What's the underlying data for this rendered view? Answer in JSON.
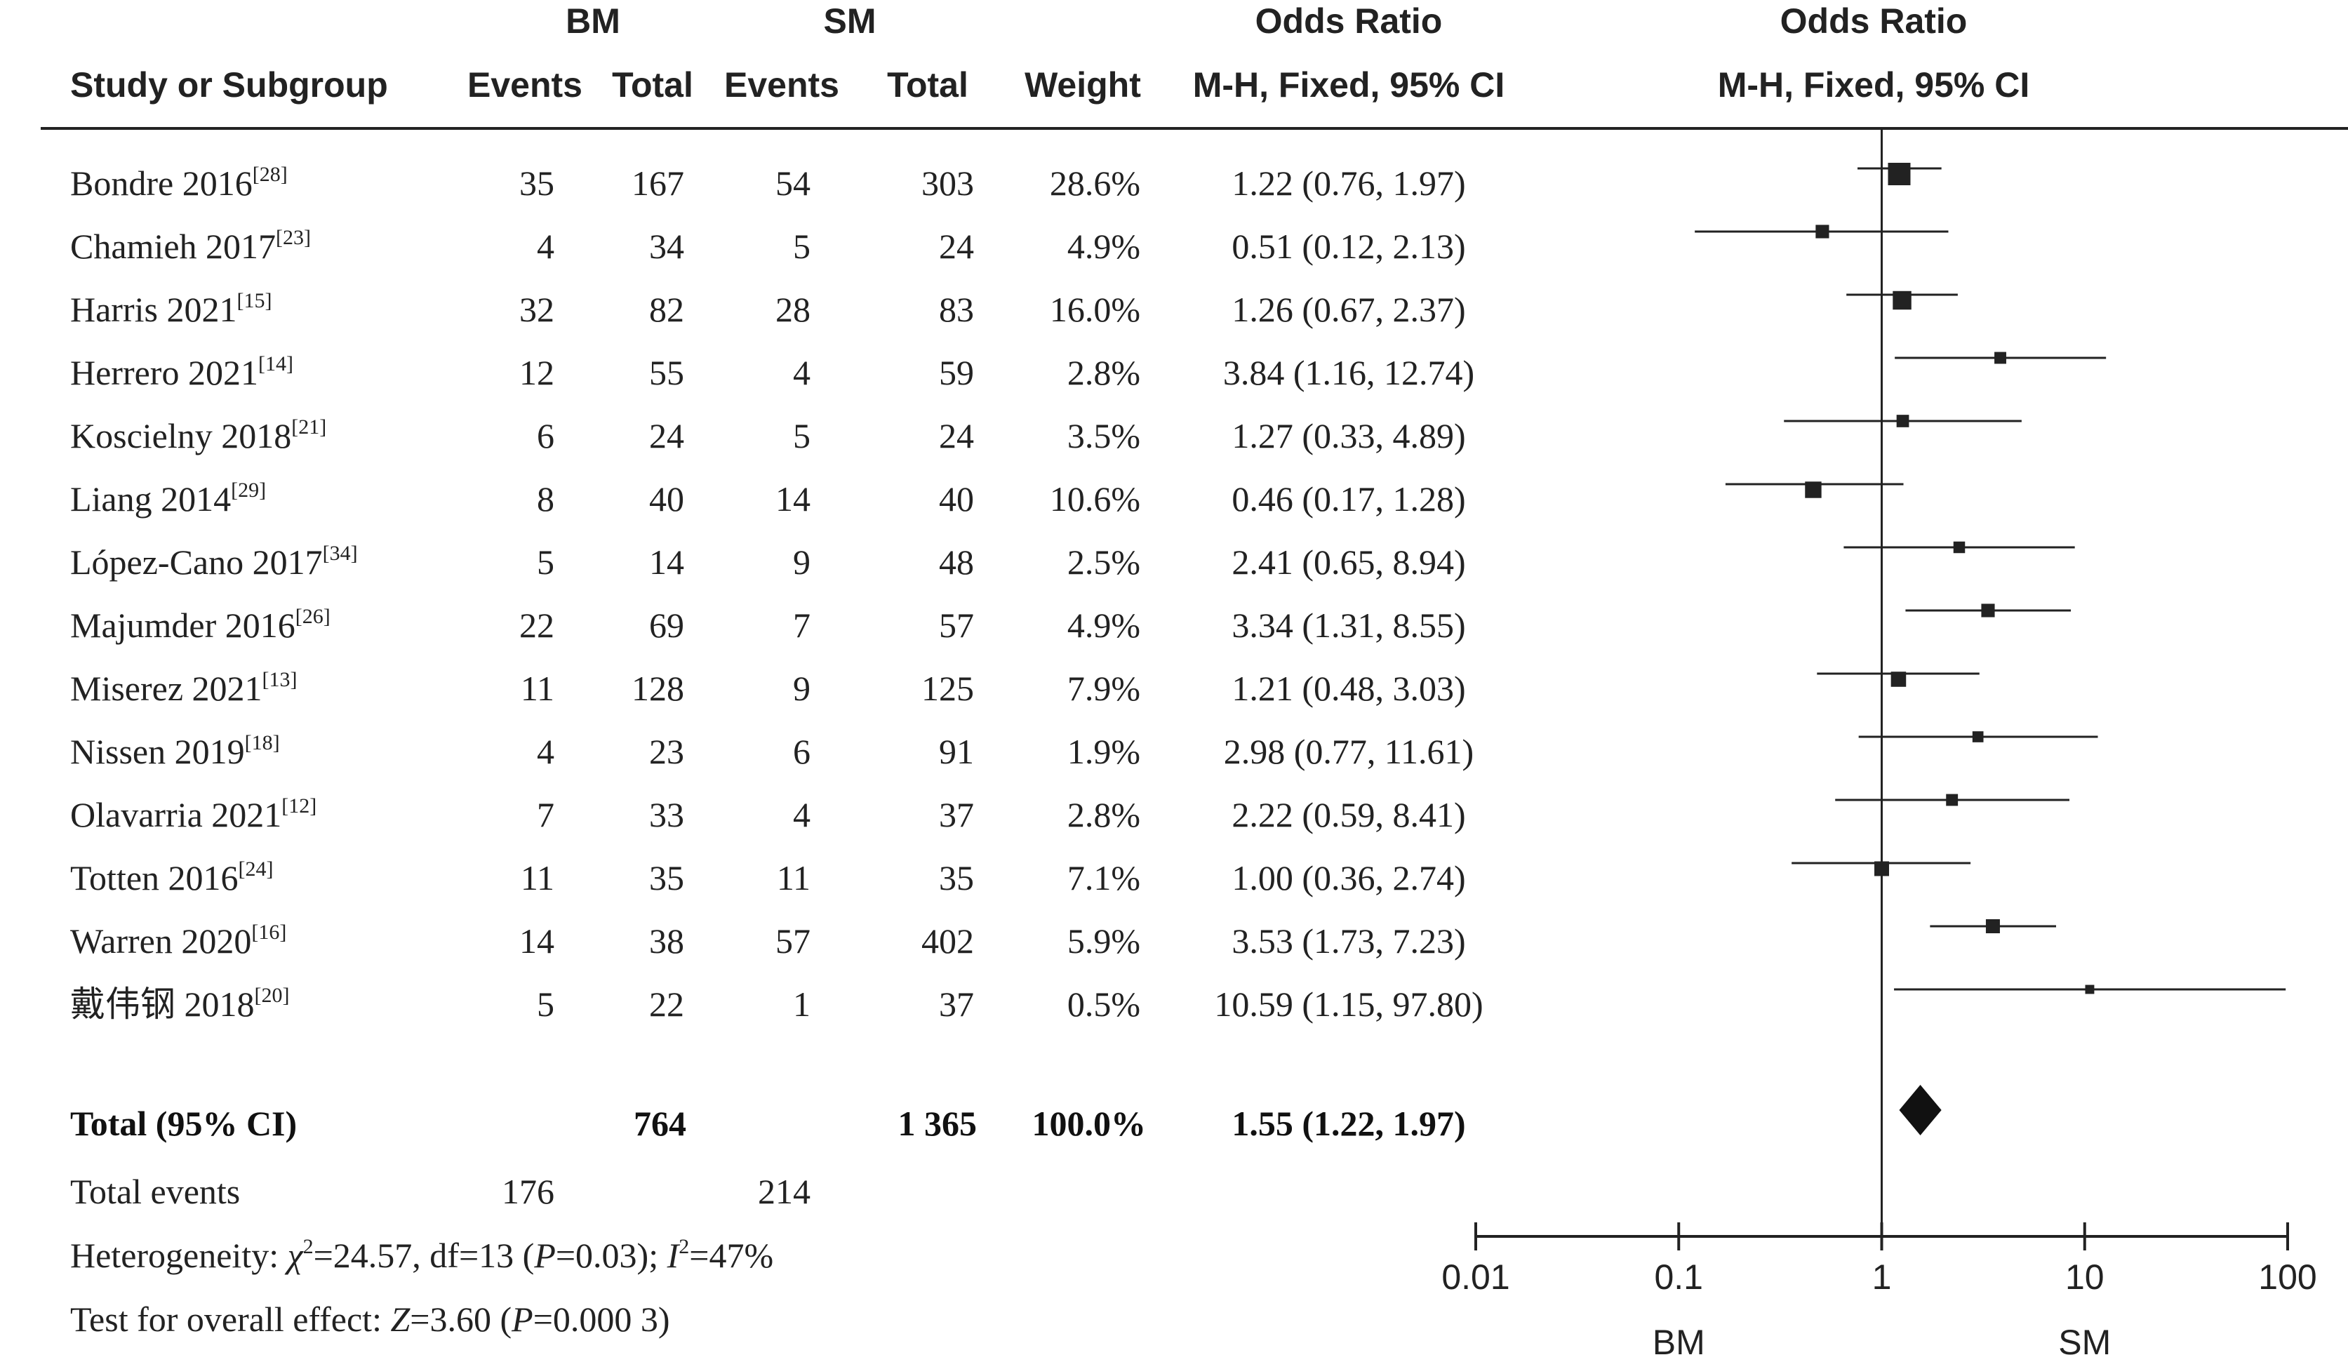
{
  "colors": {
    "ink": "#222222",
    "background": "#ffffff"
  },
  "header": {
    "group1": "BM",
    "group2": "SM",
    "odds_ratio": "Odds Ratio",
    "study_col": "Study or Subgroup",
    "events": "Events",
    "total": "Total",
    "weight": "Weight",
    "method": "M-H, Fixed, 95% CI"
  },
  "summary": {
    "label": "Total (95% CI)",
    "bm_total": "764",
    "sm_total": "1 365",
    "weight": "100.0%",
    "ci_text": "1.55 (1.22, 1.97)",
    "events_label": "Total events",
    "bm_events": "176",
    "sm_events": "214",
    "heterogeneity": {
      "label": "Heterogeneity: ",
      "chi_sym": "χ",
      "chi_sup": "2",
      "chi_val": "=24.57, df=13 (",
      "p_sym": "P",
      "p_val": "=0.03); ",
      "i_sym": "I",
      "i_sup": "2",
      "i_val": "=47%"
    },
    "overall": {
      "label": "Test for overall effect: ",
      "z_sym": "Z",
      "z_val": "=3.60 (",
      "p_sym": "P",
      "p_val": "=0.000 3)"
    }
  },
  "axis": {
    "ticks": [
      {
        "value": 0.01,
        "label": "0.01"
      },
      {
        "value": 0.1,
        "label": "0.1"
      },
      {
        "value": 1,
        "label": "1"
      },
      {
        "value": 10,
        "label": "10"
      },
      {
        "value": 100,
        "label": "100"
      }
    ],
    "left_label": "BM",
    "right_label": "SM"
  },
  "chart_data": {
    "type": "forest",
    "scale": "log",
    "xlim": [
      0.01,
      100
    ],
    "reference_line": 1,
    "studies": [
      {
        "study": "Bondre 2016",
        "ref": "[28]",
        "bm_events": 35,
        "bm_total": 167,
        "sm_events": 54,
        "sm_total": 303,
        "weight": "28.6%",
        "weight_pct": 28.6,
        "or": 1.22,
        "lo": 0.76,
        "hi": 1.97,
        "ci_text": "1.22 (0.76, 1.97)"
      },
      {
        "study": "Chamieh 2017",
        "ref": "[23]",
        "bm_events": 4,
        "bm_total": 34,
        "sm_events": 5,
        "sm_total": 24,
        "weight": "4.9%",
        "weight_pct": 4.9,
        "or": 0.51,
        "lo": 0.12,
        "hi": 2.13,
        "ci_text": "0.51 (0.12, 2.13)"
      },
      {
        "study": "Harris 2021",
        "ref": "[15]",
        "bm_events": 32,
        "bm_total": 82,
        "sm_events": 28,
        "sm_total": 83,
        "weight": "16.0%",
        "weight_pct": 16.0,
        "or": 1.26,
        "lo": 0.67,
        "hi": 2.37,
        "ci_text": "1.26 (0.67, 2.37)"
      },
      {
        "study": "Herrero 2021",
        "ref": "[14]",
        "bm_events": 12,
        "bm_total": 55,
        "sm_events": 4,
        "sm_total": 59,
        "weight": "2.8%",
        "weight_pct": 2.8,
        "or": 3.84,
        "lo": 1.16,
        "hi": 12.74,
        "ci_text": "3.84 (1.16, 12.74)"
      },
      {
        "study": "Koscielny 2018",
        "ref": "[21]",
        "bm_events": 6,
        "bm_total": 24,
        "sm_events": 5,
        "sm_total": 24,
        "weight": "3.5%",
        "weight_pct": 3.5,
        "or": 1.27,
        "lo": 0.33,
        "hi": 4.89,
        "ci_text": "1.27 (0.33, 4.89)"
      },
      {
        "study": "Liang 2014",
        "ref": "[29]",
        "bm_events": 8,
        "bm_total": 40,
        "sm_events": 14,
        "sm_total": 40,
        "weight": "10.6%",
        "weight_pct": 10.6,
        "or": 0.46,
        "lo": 0.17,
        "hi": 1.28,
        "ci_text": "0.46 (0.17, 1.28)"
      },
      {
        "study": "López-Cano 2017",
        "ref": "[34]",
        "bm_events": 5,
        "bm_total": 14,
        "sm_events": 9,
        "sm_total": 48,
        "weight": "2.5%",
        "weight_pct": 2.5,
        "or": 2.41,
        "lo": 0.65,
        "hi": 8.94,
        "ci_text": "2.41 (0.65, 8.94)"
      },
      {
        "study": "Majumder 2016",
        "ref": "[26]",
        "bm_events": 22,
        "bm_total": 69,
        "sm_events": 7,
        "sm_total": 57,
        "weight": "4.9%",
        "weight_pct": 4.9,
        "or": 3.34,
        "lo": 1.31,
        "hi": 8.55,
        "ci_text": "3.34 (1.31, 8.55)"
      },
      {
        "study": "Miserez 2021",
        "ref": "[13]",
        "bm_events": 11,
        "bm_total": 128,
        "sm_events": 9,
        "sm_total": 125,
        "weight": "7.9%",
        "weight_pct": 7.9,
        "or": 1.21,
        "lo": 0.48,
        "hi": 3.03,
        "ci_text": "1.21 (0.48, 3.03)"
      },
      {
        "study": "Nissen 2019",
        "ref": "[18]",
        "bm_events": 4,
        "bm_total": 23,
        "sm_events": 6,
        "sm_total": 91,
        "weight": "1.9%",
        "weight_pct": 1.9,
        "or": 2.98,
        "lo": 0.77,
        "hi": 11.61,
        "ci_text": "2.98 (0.77, 11.61)"
      },
      {
        "study": "Olavarria 2021",
        "ref": "[12]",
        "bm_events": 7,
        "bm_total": 33,
        "sm_events": 4,
        "sm_total": 37,
        "weight": "2.8%",
        "weight_pct": 2.8,
        "or": 2.22,
        "lo": 0.59,
        "hi": 8.41,
        "ci_text": "2.22 (0.59, 8.41)"
      },
      {
        "study": "Totten 2016",
        "ref": "[24]",
        "bm_events": 11,
        "bm_total": 35,
        "sm_events": 11,
        "sm_total": 35,
        "weight": "7.1%",
        "weight_pct": 7.1,
        "or": 1.0,
        "lo": 0.36,
        "hi": 2.74,
        "ci_text": "1.00 (0.36, 2.74)"
      },
      {
        "study": "Warren 2020",
        "ref": "[16]",
        "bm_events": 14,
        "bm_total": 38,
        "sm_events": 57,
        "sm_total": 402,
        "weight": "5.9%",
        "weight_pct": 5.9,
        "or": 3.53,
        "lo": 1.73,
        "hi": 7.23,
        "ci_text": "3.53 (1.73, 7.23)"
      },
      {
        "study": "戴伟钢 2018",
        "ref": "[20]",
        "bm_events": 5,
        "bm_total": 22,
        "sm_events": 1,
        "sm_total": 37,
        "weight": "0.5%",
        "weight_pct": 0.5,
        "or": 10.59,
        "lo": 1.15,
        "hi": 97.8,
        "ci_text": "10.59 (1.15, 97.80)"
      }
    ],
    "pooled": {
      "or": 1.55,
      "lo": 1.22,
      "hi": 1.97
    }
  }
}
